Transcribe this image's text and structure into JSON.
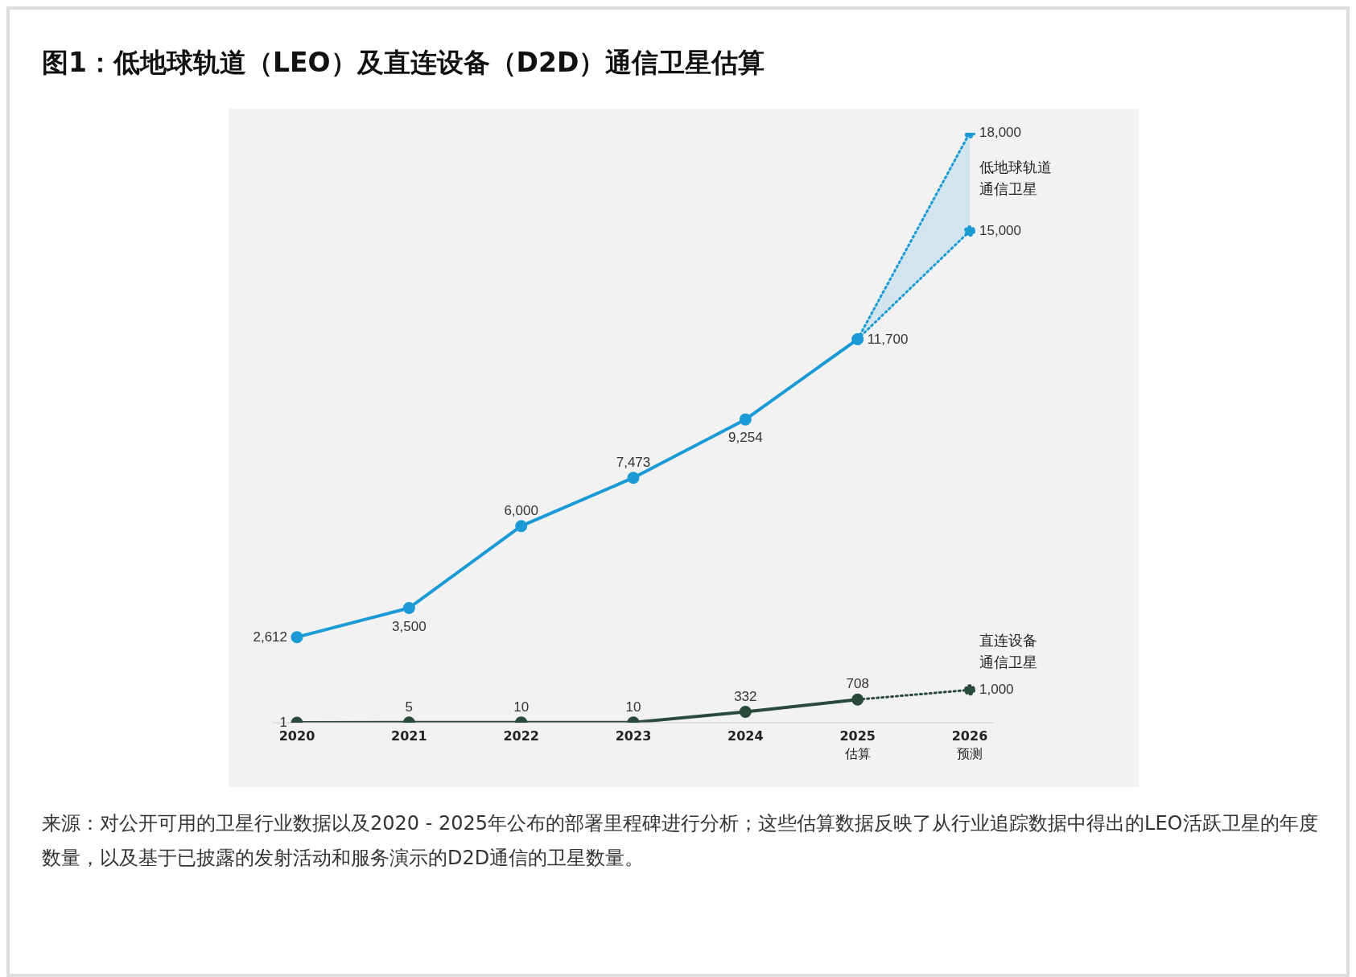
{
  "chart_data": {
    "type": "line",
    "title": "图1：低地球轨道（LEO）及直连设备（D2D）通信卫星估算",
    "categories": [
      "2020",
      "2021",
      "2022",
      "2023",
      "2024",
      "2025\n估算",
      "2026\n预测"
    ],
    "tick_labels": "x",
    "marker": "circle",
    "series": [
      {
        "name": "低地球轨道通信卫星",
        "color": "#1b9ad6",
        "line_style": "solid",
        "values": [
          2612,
          3500,
          6000,
          7473,
          9254,
          11700,
          null
        ],
        "value_labels": [
          "2,612",
          "3,500",
          "6,000",
          "7,473",
          "9,254",
          "11,700",
          null
        ]
      },
      {
        "color": "#1b9ad6",
        "line_style": "dotted",
        "values": [
          null,
          null,
          null,
          null,
          null,
          11700,
          18000
        ],
        "value_labels": [
          null,
          null,
          null,
          null,
          null,
          null,
          "18,000"
        ],
        "lower": [
          null,
          null,
          null,
          null,
          null,
          11700,
          15000
        ],
        "upper": [
          null,
          null,
          null,
          null,
          null,
          11700,
          18000
        ]
      },
      {
        "color": "#1b9ad6",
        "line_style": "dotted",
        "values": [
          null,
          null,
          null,
          null,
          null,
          11700,
          15000
        ],
        "value_labels": [
          null,
          null,
          null,
          null,
          null,
          null,
          "15,000"
        ]
      },
      {
        "name": "直连设备通信卫星",
        "color": "#2a4a3c",
        "line_style": "solid",
        "values": [
          1,
          5,
          10,
          10,
          332,
          708,
          null
        ],
        "value_labels": [
          "1",
          "5",
          "10",
          "10",
          "332",
          "708",
          null
        ]
      },
      {
        "color": "#2a4a3c",
        "line_style": "dotted",
        "values": [
          null,
          null,
          null,
          null,
          null,
          708,
          1000
        ],
        "value_labels": [
          null,
          null,
          null,
          null,
          null,
          null,
          "1,000"
        ]
      }
    ],
    "annotations": [
      "来源：对公开可用的卫星行业数据以及2020 - 2025年公布的部署里程碑进行分析；这些估算数据反映了从行业追踪数据中得出的LEO活跃卫星的年度数量，以及基于已披露的发射活动和服务演示的D2D通信的卫星数量。"
    ]
  }
}
